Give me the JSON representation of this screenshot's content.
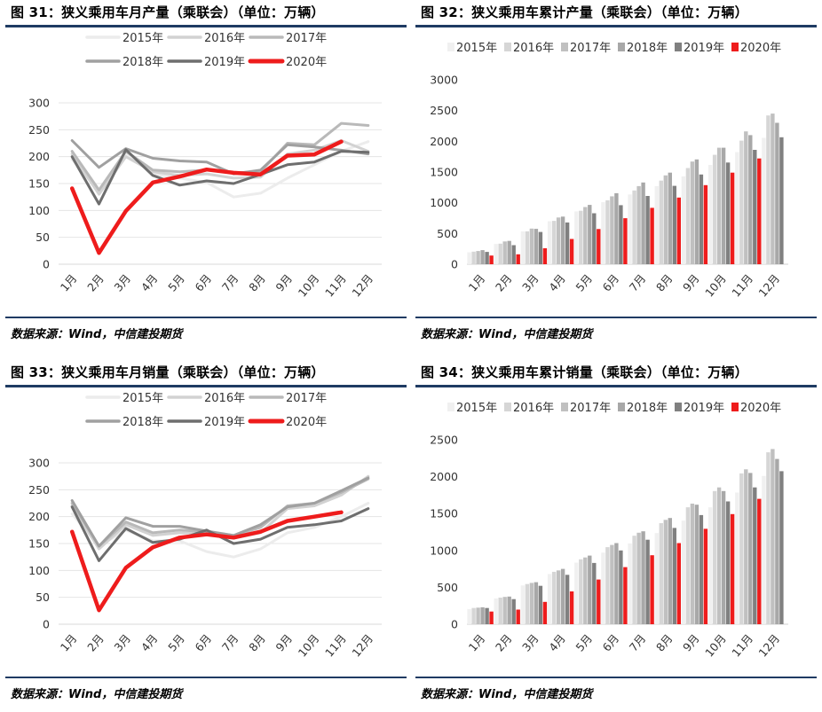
{
  "panels": [
    {
      "title": "图 31：狭义乘用车月产量（乘联会）（单位：万辆）",
      "source": "数据来源：Wind，中信建投期货",
      "chart_data": {
        "type": "line",
        "categories": [
          "1月",
          "2月",
          "3月",
          "4月",
          "5月",
          "6月",
          "7月",
          "8月",
          "9月",
          "10月",
          "11月",
          "12月"
        ],
        "ylim": [
          0,
          300
        ],
        "yticks": [
          0,
          50,
          100,
          150,
          200,
          250,
          300
        ],
        "grid": true,
        "legend_position": "top",
        "series": [
          {
            "name": "2015年",
            "color": "#ececec",
            "values": [
              195,
              135,
              205,
              168,
              160,
              152,
              125,
              132,
              160,
              185,
              210,
              228
            ]
          },
          {
            "name": "2016年",
            "color": "#d2d2d2",
            "values": [
              205,
              130,
              200,
              172,
              165,
              168,
              160,
              162,
              205,
              212,
              230,
              210
            ]
          },
          {
            "name": "2017年",
            "color": "#b9b9b9",
            "values": [
              210,
              138,
              210,
              175,
              172,
              175,
              170,
              172,
              225,
              222,
              262,
              258
            ]
          },
          {
            "name": "2018年",
            "color": "#a0a0a0",
            "values": [
              230,
              180,
              215,
              197,
              192,
              190,
              168,
              175,
              222,
              218,
              212,
              205
            ]
          },
          {
            "name": "2019年",
            "color": "#6e6e6e",
            "values": [
              200,
              112,
              213,
              165,
              147,
              155,
              150,
              167,
              185,
              190,
              210,
              208
            ]
          },
          {
            "name": "2020年",
            "color": "#ee1c1c",
            "values": [
              141,
              21,
              99,
              152,
              163,
              176,
              170,
              167,
              202,
              204,
              228,
              null
            ]
          }
        ]
      }
    },
    {
      "title": "图 32：狭义乘用车累计产量（乘联会）（单位：万辆）",
      "source": "数据来源：Wind，中信建投期货",
      "chart_data": {
        "type": "bar",
        "categories": [
          "1月",
          "2月",
          "3月",
          "4月",
          "5月",
          "6月",
          "7月",
          "8月",
          "9月",
          "10月",
          "11月",
          "12月"
        ],
        "ylim": [
          0,
          3000
        ],
        "yticks": [
          0,
          500,
          1000,
          1500,
          2000,
          2500,
          3000
        ],
        "grid": false,
        "legend_position": "top",
        "series": [
          {
            "name": "2015年",
            "color": "#f0f0f0",
            "values": [
              195,
              330,
              535,
              700,
              860,
              1010,
              1135,
              1270,
              1430,
              1615,
              1825,
              2055
            ]
          },
          {
            "name": "2016年",
            "color": "#d6d6d6",
            "values": [
              205,
              335,
              535,
              705,
              870,
              1040,
              1200,
              1360,
              1565,
              1780,
              2010,
              2420
            ]
          },
          {
            "name": "2017年",
            "color": "#c0c0c0",
            "values": [
              215,
              370,
              580,
              760,
              930,
              1105,
              1270,
              1445,
              1670,
              1895,
              2160,
              2450
            ]
          },
          {
            "name": "2018年",
            "color": "#a8a8a8",
            "values": [
              230,
              380,
              575,
              775,
              965,
              1155,
              1330,
              1490,
              1705,
              1895,
              2100,
              2300
            ]
          },
          {
            "name": "2019年",
            "color": "#808080",
            "values": [
              200,
              310,
              525,
              680,
              830,
              960,
              1110,
              1275,
              1460,
              1655,
              1860,
              2065
            ]
          },
          {
            "name": "2020年",
            "color": "#ee1c1c",
            "values": [
              141,
              162,
              260,
              411,
              573,
              748,
              918,
              1085,
              1287,
              1490,
              1720,
              null
            ]
          }
        ]
      }
    },
    {
      "title": "图 33：狭义乘用车月销量（乘联会）（单位：万辆）",
      "source": "数据来源：Wind，中信建投期货",
      "chart_data": {
        "type": "line",
        "categories": [
          "1月",
          "2月",
          "3月",
          "4月",
          "5月",
          "6月",
          "7月",
          "8月",
          "9月",
          "10月",
          "11月",
          "12月"
        ],
        "ylim": [
          0,
          300
        ],
        "yticks": [
          0,
          50,
          100,
          150,
          200,
          250,
          300
        ],
        "grid": true,
        "legend_position": "top",
        "series": [
          {
            "name": "2015年",
            "color": "#ececec",
            "values": [
              205,
              145,
              175,
              155,
              155,
              135,
              125,
              140,
              170,
              180,
              200,
              225
            ]
          },
          {
            "name": "2016年",
            "color": "#d2d2d2",
            "values": [
              220,
              140,
              185,
              165,
              170,
              168,
              160,
              170,
              215,
              220,
              240,
              275
            ]
          },
          {
            "name": "2017年",
            "color": "#b9b9b9",
            "values": [
              225,
              145,
              190,
              170,
              175,
              172,
              165,
              180,
              220,
              225,
              245,
              270
            ]
          },
          {
            "name": "2018年",
            "color": "#a0a0a0",
            "values": [
              230,
              145,
              198,
              182,
              182,
              173,
              165,
              185,
              218,
              225,
              248,
              272
            ]
          },
          {
            "name": "2019年",
            "color": "#6e6e6e",
            "values": [
              218,
              118,
              178,
              152,
              158,
              175,
              150,
              158,
              180,
              185,
              192,
              215
            ]
          },
          {
            "name": "2020年",
            "color": "#ee1c1c",
            "values": [
              172,
              26,
              105,
              143,
              161,
              167,
              161,
              172,
              192,
              200,
              208,
              null
            ]
          }
        ]
      }
    },
    {
      "title": "图 34：狭义乘用车累计销量（乘联会）（单位：万辆）",
      "source": "数据来源：Wind，中信建投期货",
      "chart_data": {
        "type": "bar",
        "categories": [
          "1月",
          "2月",
          "3月",
          "4月",
          "5月",
          "6月",
          "7月",
          "8月",
          "9月",
          "10月",
          "11月",
          "12月"
        ],
        "ylim": [
          0,
          2500
        ],
        "yticks": [
          0,
          500,
          1000,
          1500,
          2000,
          2500
        ],
        "grid": false,
        "legend_position": "top",
        "series": [
          {
            "name": "2015年",
            "color": "#f0f0f0",
            "values": [
              205,
              350,
              525,
              680,
              835,
              970,
              1095,
              1235,
              1405,
              1585,
              1785,
              2010
            ]
          },
          {
            "name": "2016年",
            "color": "#d6d6d6",
            "values": [
              220,
              360,
              545,
              710,
              880,
              1045,
              1200,
              1370,
              1585,
              1805,
              2045,
              2330
            ]
          },
          {
            "name": "2017年",
            "color": "#c0c0c0",
            "values": [
              225,
              370,
              560,
              730,
              905,
              1075,
              1240,
              1415,
              1635,
              1855,
              2100,
              2375
            ]
          },
          {
            "name": "2018年",
            "color": "#a8a8a8",
            "values": [
              230,
              375,
              570,
              750,
              930,
              1100,
              1260,
              1440,
              1620,
              1805,
              2050,
              2240
            ]
          },
          {
            "name": "2019年",
            "color": "#808080",
            "values": [
              220,
              340,
              520,
              670,
              830,
              1000,
              1145,
              1305,
              1480,
              1665,
              1855,
              2075
            ]
          },
          {
            "name": "2020年",
            "color": "#ee1c1c",
            "values": [
              172,
              198,
              303,
              445,
              606,
              774,
              935,
              1100,
              1293,
              1493,
              1700,
              null
            ]
          }
        ]
      }
    }
  ]
}
